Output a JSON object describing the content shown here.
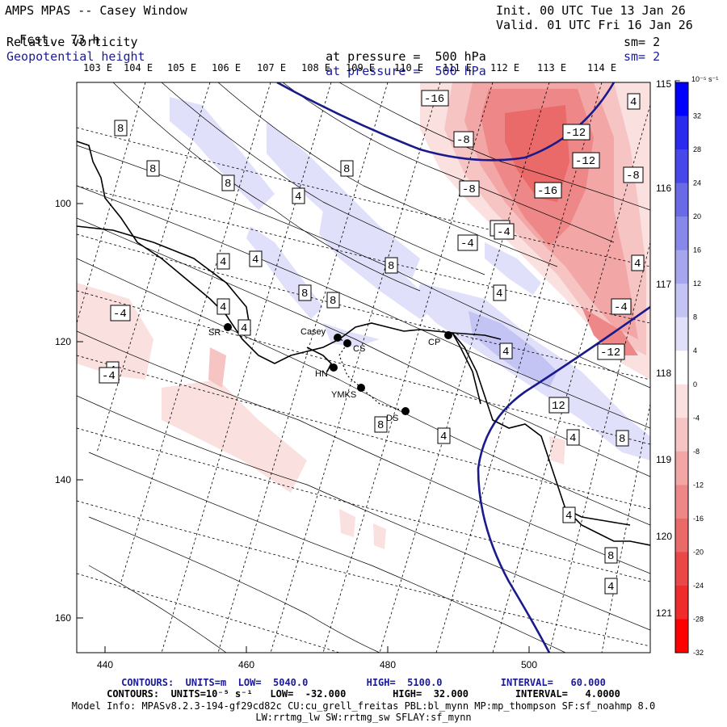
{
  "header": {
    "title": "AMPS MPAS -- Casey Window",
    "fcst_label": "Fcst.",
    "fcst_value": "73 h",
    "init": "Init. 00 UTC Tue 13 Jan 26",
    "valid": "Valid. 01 UTC Fri 16 Jan 26",
    "field1": {
      "name": "Relative vorticity",
      "level_label": "at pressure =",
      "level": "500 hPa",
      "sm": "sm= 2"
    },
    "field2": {
      "name": "Geopotential height",
      "level_label": "at pressure =",
      "level": "500 hPa",
      "sm": "sm= 2"
    }
  },
  "map": {
    "top_longitudes": [
      "103 E",
      "104 E",
      "105 E",
      "106 E",
      "107 E",
      "108 E",
      "109 E",
      "110 E",
      "111 E",
      "112 E",
      "113 E",
      "114 E"
    ],
    "right_longitudes": [
      "115 E",
      "116 E",
      "117 E",
      "118 E",
      "119 E",
      "120 E",
      "121 E"
    ],
    "x_ticks": [
      "440",
      "460",
      "480",
      "500"
    ],
    "y_ticks": [
      "100",
      "120",
      "140",
      "160"
    ],
    "stations": [
      "SR",
      "Casey",
      "CS",
      "HN",
      "YMKS",
      "DS",
      "CP"
    ],
    "contour_labels_pos": [
      "8",
      "8",
      "8",
      "8",
      "4",
      "4",
      "4",
      "4",
      "8",
      "8",
      "8",
      "4",
      "4",
      "4",
      "12",
      "8",
      "4",
      "8",
      "4",
      "4",
      "8",
      "4",
      "4",
      "4",
      "4"
    ],
    "contour_labels_neg": [
      "-16",
      "-8",
      "-12",
      "-12",
      "-8",
      "-4",
      "-8",
      "-16",
      "-4",
      "-4",
      "-4",
      "-12",
      "-4",
      "-4"
    ]
  },
  "colorbar": {
    "unit": "10⁻⁵ s⁻¹",
    "ticks": [
      "32",
      "28",
      "24",
      "20",
      "16",
      "12",
      "8",
      "4",
      "0",
      "-4",
      "-8",
      "-12",
      "-16",
      "-20",
      "-24",
      "-28",
      "-32"
    ],
    "colors": [
      "#0000ff",
      "#2b2bf0",
      "#4848ea",
      "#6a6ae6",
      "#8888ea",
      "#a6a6ee",
      "#c4c4f4",
      "#e0e0fa",
      "#ffffff",
      "#fbe0e0",
      "#f7c4c4",
      "#f2a6a6",
      "#ee8888",
      "#ea6a6a",
      "#ea4848",
      "#f02b2b",
      "#ff0000"
    ]
  },
  "footer": {
    "line1": "CONTOURS:  UNITS=m  LOW=  5040.0          HIGH=  5100.0          INTERVAL=   60.000",
    "line2": "CONTOURS:  UNITS=10⁻⁵ s⁻¹   LOW=  -32.000        HIGH=  32.000        INTERVAL=   4.0000",
    "line3": "Model Info: MPASv8.2.3-194-gf29cd82c CU:cu_grell_freitas PBL:bl_mynn MP:mp_thompson SF:sf_noahmp 8.0",
    "line4": "LW:rrtmg_lw SW:rrtmg_sw SFLAY:sf_mynn"
  }
}
